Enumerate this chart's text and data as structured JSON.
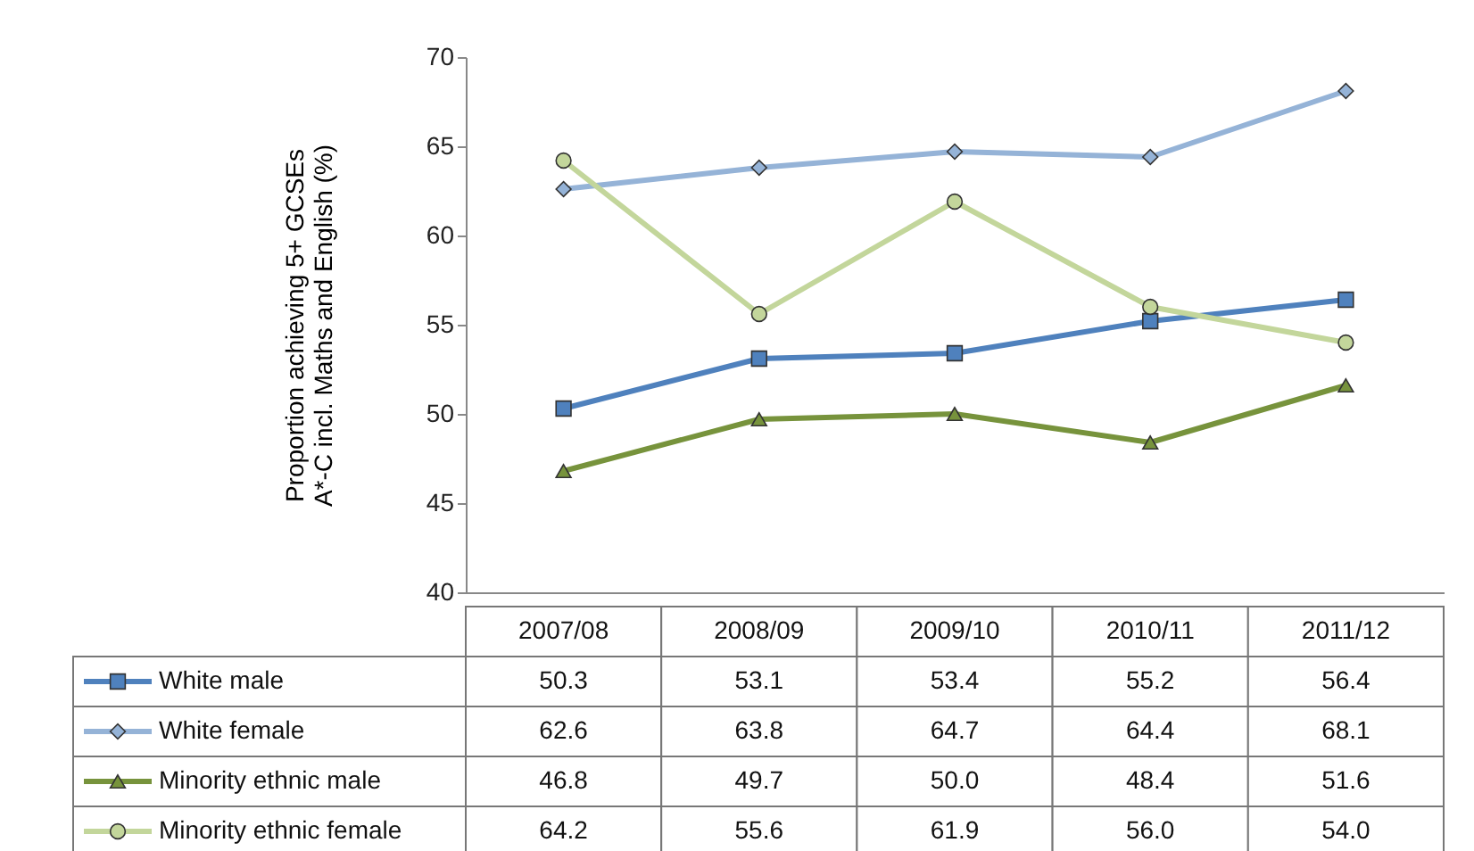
{
  "chart_data": {
    "type": "line",
    "ylabel": "Proportion achieving 5+ GCSEs A*-C incl. Maths and English (%)",
    "categories": [
      "2007/08",
      "2008/09",
      "2009/10",
      "2010/11",
      "2011/12"
    ],
    "ylim": [
      40,
      70
    ],
    "yticks": [
      40,
      45,
      50,
      55,
      60,
      65,
      70
    ],
    "grid": false,
    "legend": "bottom left",
    "line_style": "solid",
    "series": [
      {
        "name": "White male",
        "color": "#4f81bd",
        "marker": "square",
        "values": [
          50.3,
          53.1,
          53.4,
          55.2,
          56.4
        ],
        "value_labels": [
          "50.3",
          "53.1",
          "53.4",
          "55.2",
          "56.4"
        ]
      },
      {
        "name": "White female",
        "color": "#95b3d7",
        "marker": "diamond",
        "values": [
          62.6,
          63.8,
          64.7,
          64.4,
          68.1
        ],
        "value_labels": [
          "62.6",
          "63.8",
          "64.7",
          "64.4",
          "68.1"
        ]
      },
      {
        "name": "Minority ethnic male",
        "color": "#77933c",
        "marker": "triangle",
        "values": [
          46.8,
          49.7,
          50.0,
          48.4,
          51.6
        ],
        "value_labels": [
          "46.8",
          "49.7",
          "50.0",
          "48.4",
          "51.6"
        ]
      },
      {
        "name": "Minority ethnic female",
        "color": "#c3d69b",
        "marker": "circle",
        "values": [
          64.2,
          55.6,
          61.9,
          56.0,
          54.0
        ],
        "value_labels": [
          "64.2",
          "55.6",
          "61.9",
          "56.0",
          "54.0"
        ]
      }
    ]
  }
}
